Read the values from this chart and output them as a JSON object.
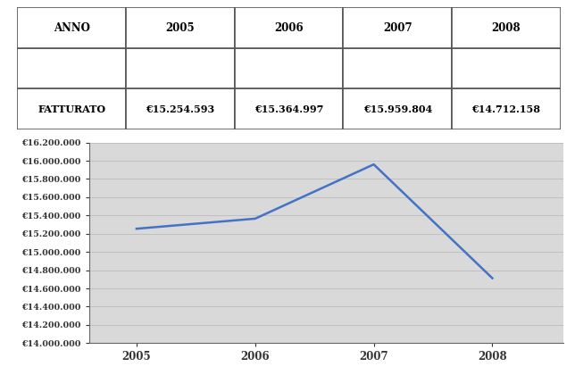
{
  "years": [
    2005,
    2006,
    2007,
    2008
  ],
  "values": [
    15254593,
    15364997,
    15959804,
    14712158
  ],
  "table_header": [
    "ANNO",
    "2005",
    "2006",
    "2007",
    "2008"
  ],
  "table_row2": [
    "FATTURATO",
    "€15.254.593",
    "€15.364.997",
    "€15.959.804",
    "€14.712.158"
  ],
  "ylim_min": 14000000,
  "ylim_max": 16200000,
  "ytick_step": 200000,
  "line_color": "#4472c4",
  "page_bg": "#ffffff",
  "table_cell_bg": "#ffffff",
  "chart_bg": "#d9d9d9",
  "grid_color": "#b0b0b0",
  "border_color": "#555555"
}
